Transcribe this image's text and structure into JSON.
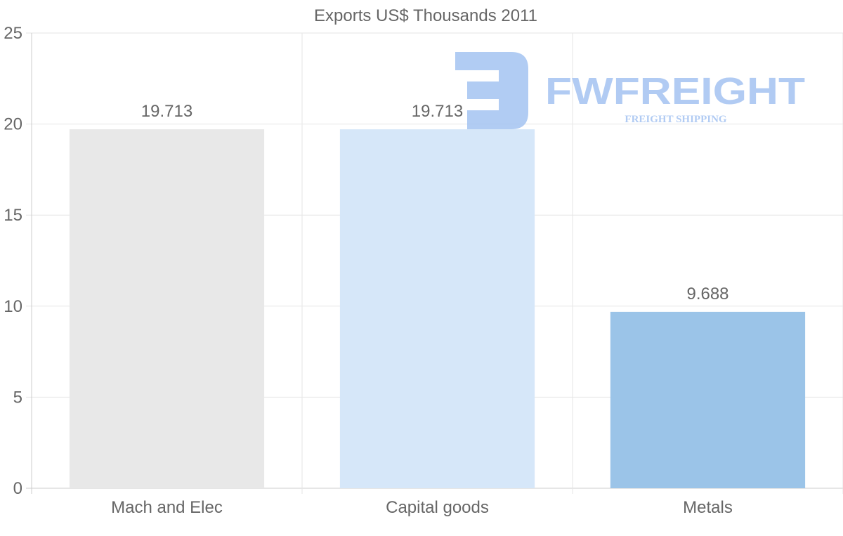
{
  "chart_data": {
    "type": "bar",
    "title": "Exports US$ Thousands 2011",
    "categories": [
      "Mach and Elec",
      "Capital goods",
      "Metals"
    ],
    "values": [
      19.713,
      19.713,
      9.688
    ],
    "value_labels": [
      "19.713",
      "19.713",
      "9.688"
    ],
    "colors": [
      "#e8e8e8",
      "#d6e7f9",
      "#9bc4e8"
    ],
    "xlabel": "",
    "ylabel": "",
    "ylim": [
      0,
      25
    ],
    "yticks": [
      0,
      5,
      10,
      15,
      20,
      25
    ],
    "grid": true,
    "legend": "none"
  },
  "watermark": {
    "brand": "FWFREIGHT",
    "tagline": "FREIGHT SHIPPING",
    "color": "#a9c6f2"
  }
}
